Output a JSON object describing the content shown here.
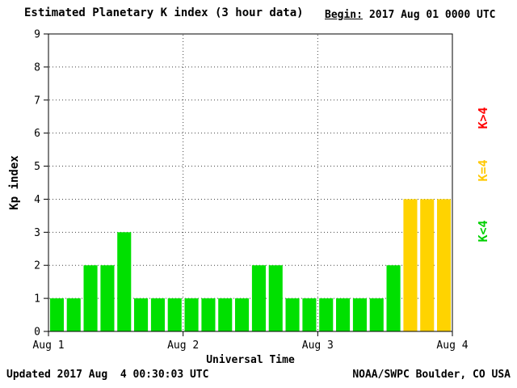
{
  "header": {
    "title": "Estimated Planetary K index (3 hour data)",
    "begin_label": "Begin:",
    "begin_value": "2017 Aug 01 0000 UTC"
  },
  "footer": {
    "updated": "Updated 2017 Aug  4 00:30:03 UTC",
    "source": "NOAA/SWPC Boulder, CO USA"
  },
  "legend": {
    "above": {
      "label": "K>4",
      "color": "#ff0000"
    },
    "equal": {
      "label": "K=4",
      "color": "#ffc800"
    },
    "below": {
      "label": "K<4",
      "color": "#00d000"
    }
  },
  "chart_data": {
    "type": "bar",
    "title": "Estimated Planetary K index (3 hour data)",
    "xlabel": "Universal Time",
    "ylabel": "Kp index",
    "ylim": [
      0,
      9
    ],
    "y_ticks": [
      0,
      1,
      2,
      3,
      4,
      5,
      6,
      7,
      8,
      9
    ],
    "x_tick_labels": [
      "Aug 1",
      "Aug 2",
      "Aug 3",
      "Aug 4"
    ],
    "interval_hours": 3,
    "bars_per_day": 8,
    "values": [
      1,
      1,
      2,
      2,
      3,
      1,
      1,
      1,
      1,
      1,
      1,
      1,
      2,
      2,
      1,
      1,
      1,
      1,
      1,
      1,
      2,
      4,
      4,
      4
    ],
    "color_rule": {
      "below4": "#00e000",
      "equal4": "#ffd300",
      "above4": "#ff0000"
    },
    "grid": "dotted horizontal lines at each Kp integer, dotted vertical lines at day boundaries",
    "legend_position": "right, rotated 90deg"
  }
}
